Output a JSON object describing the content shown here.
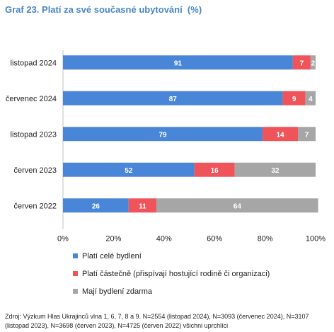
{
  "chart_data": {
    "type": "bar",
    "orientation": "horizontal",
    "stacked": true,
    "title": "Graf 23. Platí za své současné ubytování  (%)",
    "categories": [
      "listopad 2024",
      "červenec 2024",
      "listopad 2023",
      "červen 2023",
      "červen 2022"
    ],
    "series": [
      {
        "name": "Platí celé bydlení",
        "color": "#4a86d8",
        "values": [
          91,
          87,
          79,
          52,
          26
        ]
      },
      {
        "name": "Platí částečně (přispívají hostující rodině či organizaci)",
        "color": "#f0545b",
        "values": [
          7,
          9,
          14,
          16,
          11
        ]
      },
      {
        "name": "Mají bydlení zdarma",
        "color": "#a6a6a6",
        "values": [
          2,
          4,
          7,
          32,
          64
        ]
      }
    ],
    "xlim": [
      0,
      100
    ],
    "xticks": [
      "0%",
      "20%",
      "40%",
      "60%",
      "80%",
      "100%"
    ],
    "legend_position": "bottom",
    "grid": false,
    "source": "Zdroj: Výzkum Hlas Ukrajinců vlna 1, 6, 7, 8 a 9. N=2554 (listopad 2024), N=3093 (červenec 2024), N=3107 (listopad 2023), N=3698 (červen 2023), N=4725 (červen 2022) všichni uprchlíci"
  }
}
